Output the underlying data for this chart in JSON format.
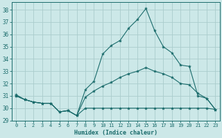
{
  "xlabel": "Humidex (Indice chaleur)",
  "bg_color": "#cce8e8",
  "grid_color": "#aacccc",
  "line_color": "#1a6b6b",
  "xlim": [
    -0.5,
    23.5
  ],
  "ylim": [
    29,
    38.6
  ],
  "yticks": [
    29,
    30,
    31,
    32,
    33,
    34,
    35,
    36,
    37,
    38
  ],
  "xticks": [
    0,
    1,
    2,
    3,
    4,
    5,
    6,
    7,
    8,
    9,
    10,
    11,
    12,
    13,
    14,
    15,
    16,
    17,
    18,
    19,
    20,
    21,
    22,
    23
  ],
  "series": [
    {
      "x": [
        0,
        1,
        2,
        3,
        4,
        5,
        6,
        7,
        8,
        9,
        10,
        11,
        12,
        13,
        14,
        15,
        16,
        17,
        18,
        19,
        20,
        21,
        22,
        23
      ],
      "y": [
        31.0,
        30.7,
        30.5,
        30.4,
        30.4,
        29.7,
        29.8,
        29.4,
        30.0,
        30.0,
        30.0,
        30.0,
        30.0,
        30.0,
        30.0,
        30.0,
        30.0,
        30.0,
        30.0,
        30.0,
        30.0,
        30.0,
        30.0,
        29.9
      ]
    },
    {
      "x": [
        0,
        1,
        2,
        3,
        4,
        5,
        6,
        7,
        8,
        9,
        10,
        11,
        12,
        13,
        14,
        15,
        16,
        17,
        18,
        19,
        20,
        21,
        22,
        23
      ],
      "y": [
        31.0,
        30.7,
        30.5,
        30.4,
        30.4,
        29.7,
        29.8,
        29.4,
        30.9,
        31.4,
        31.8,
        32.1,
        32.5,
        32.8,
        33.0,
        33.3,
        33.0,
        32.8,
        32.5,
        32.0,
        31.9,
        31.2,
        30.8,
        29.9
      ]
    },
    {
      "x": [
        0,
        1,
        2,
        3,
        4,
        5,
        6,
        7,
        8,
        9,
        10,
        11,
        12,
        13,
        14,
        15,
        16,
        17,
        18,
        19,
        20,
        21,
        22,
        23
      ],
      "y": [
        31.1,
        30.7,
        30.5,
        30.4,
        30.4,
        29.7,
        29.8,
        29.4,
        31.5,
        32.2,
        34.4,
        35.1,
        35.5,
        36.5,
        37.2,
        38.1,
        36.3,
        35.0,
        34.5,
        33.5,
        33.4,
        31.0,
        30.8,
        29.9
      ]
    }
  ]
}
